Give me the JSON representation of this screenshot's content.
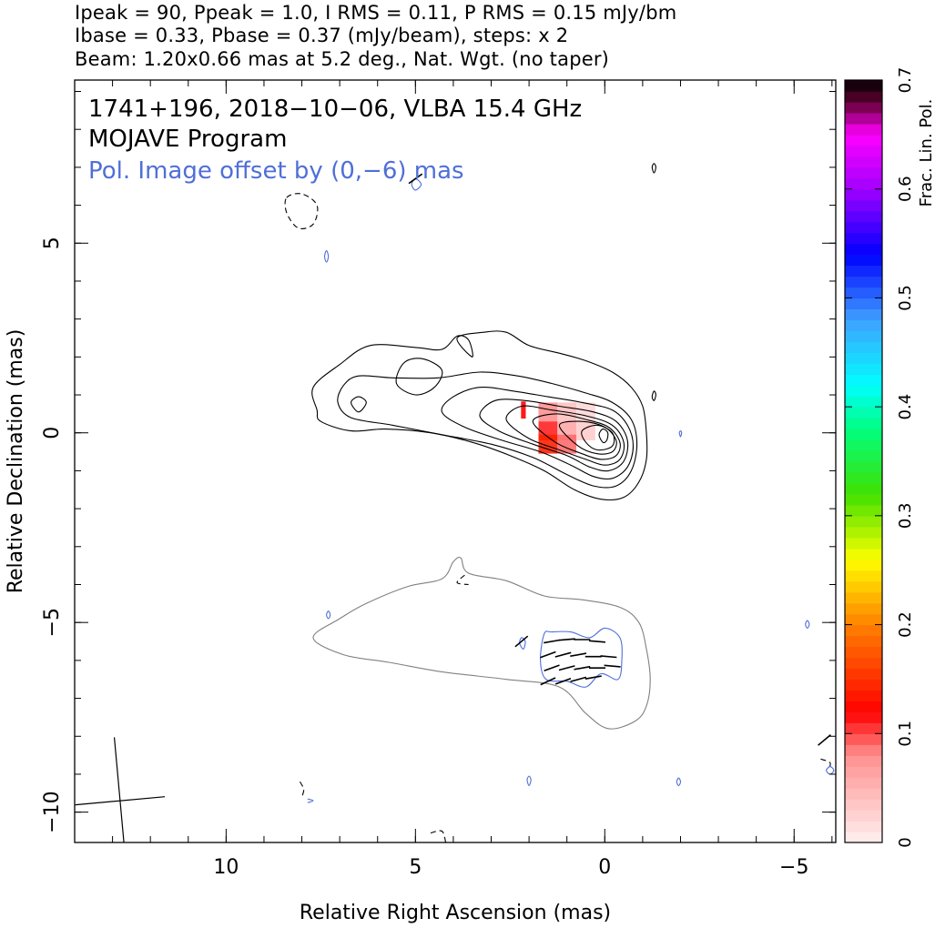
{
  "header": {
    "line1": "Ipeak = 90, Ppeak = 1.0, I RMS = 0.11, P RMS = 0.15 mJy/bm",
    "line2": "Ibase = 0.33, Pbase = 0.37 (mJy/beam), steps: x 2",
    "line3": "Beam: 1.20x0.66 mas at 5.2 deg., Nat. Wgt. (no taper)"
  },
  "panel": {
    "source_line": "1741+196, 2018−10−06, VLBA 15.4 GHz",
    "program_line": "MOJAVE Program",
    "offset_note": "Pol. Image offset by (0,−6) mas"
  },
  "colors": {
    "total_intensity_contours": "#000000",
    "pol_contours": "#4f6fd8",
    "pol_outline": "#808080",
    "note_text": "#4f6fd8"
  },
  "chart_data": {
    "type": "contour",
    "title": "1741+196, 2018−10−06, VLBA 15.4 GHz",
    "xlabel": "Relative Right Ascension (mas)",
    "ylabel": "Relative Declination (mas)",
    "xlim": [
      14.0,
      -6.1
    ],
    "ylim": [
      -10.8,
      9.3
    ],
    "x_ticks": [
      10,
      5,
      0,
      -5
    ],
    "x_tick_labels": [
      "10",
      "5",
      "0",
      "−5"
    ],
    "y_ticks": [
      5,
      0,
      -5,
      -10
    ],
    "y_tick_labels": [
      "5",
      "0",
      "−5",
      "−10"
    ],
    "x_minor_step": 1,
    "y_minor_step": 1,
    "total_intensity_peak_mJy_per_beam": 90,
    "polarized_peak_mJy_per_beam": 1.0,
    "contour_base_mJy_per_beam": 0.33,
    "contour_step_factor": 2,
    "contour_levels_mJy_per_beam": [
      0.33,
      0.66,
      1.32,
      2.64,
      5.28,
      10.56,
      21.12,
      42.24,
      84.48
    ],
    "beam": {
      "major_mas": 1.2,
      "minor_mas": 0.66,
      "pa_deg": 5.2,
      "center": [
        12.8,
        -9.7
      ]
    },
    "core_position": [
      0,
      0
    ],
    "pol_offset_mas": [
      0,
      -6
    ],
    "colorbar": {
      "label": "Frac. Lin. Pol.",
      "range": [
        0,
        0.7
      ],
      "ticks": [
        0,
        0.1,
        0.2,
        0.3,
        0.4,
        0.5,
        0.6,
        0.7
      ],
      "tick_labels": [
        "0",
        "0.1",
        "0.2",
        "0.3",
        "0.4",
        "0.5",
        "0.6",
        "0.7"
      ],
      "stops": [
        [
          0.0,
          "#fff0f0"
        ],
        [
          0.08,
          "#ff9090"
        ],
        [
          0.12,
          "#ff0000"
        ],
        [
          0.2,
          "#ff8000"
        ],
        [
          0.26,
          "#ffff00"
        ],
        [
          0.32,
          "#40e000"
        ],
        [
          0.38,
          "#00ff80"
        ],
        [
          0.42,
          "#00ffff"
        ],
        [
          0.48,
          "#40a0ff"
        ],
        [
          0.54,
          "#0000ff"
        ],
        [
          0.6,
          "#a000ff"
        ],
        [
          0.65,
          "#ff00ff"
        ],
        [
          0.68,
          "#600030"
        ],
        [
          0.7,
          "#000000"
        ]
      ]
    },
    "fractional_pol_patches": [
      {
        "x": 1.5,
        "y": 0.55,
        "frac": 0.08
      },
      {
        "x": 1.0,
        "y": 0.55,
        "frac": 0.04
      },
      {
        "x": 0.5,
        "y": 0.55,
        "frac": 0.02
      },
      {
        "x": 1.5,
        "y": 0.05,
        "frac": 0.11
      },
      {
        "x": 1.0,
        "y": 0.05,
        "frac": 0.06
      },
      {
        "x": 0.5,
        "y": 0.05,
        "frac": 0.03
      },
      {
        "x": 1.5,
        "y": -0.3,
        "frac": 0.14
      },
      {
        "x": 1.0,
        "y": -0.3,
        "frac": 0.09
      },
      {
        "x": 2.15,
        "y": 0.6,
        "frac": 0.12
      }
    ],
    "evpa_vectors": [
      {
        "x": 1.4,
        "y": -5.5,
        "angle_deg": -10
      },
      {
        "x": 1.0,
        "y": -5.45,
        "angle_deg": -5
      },
      {
        "x": 0.6,
        "y": -5.45,
        "angle_deg": 0
      },
      {
        "x": 0.2,
        "y": -5.5,
        "angle_deg": 5
      },
      {
        "x": 1.5,
        "y": -5.85,
        "angle_deg": -20
      },
      {
        "x": 1.1,
        "y": -5.85,
        "angle_deg": -15
      },
      {
        "x": 0.7,
        "y": -5.85,
        "angle_deg": -10
      },
      {
        "x": 0.3,
        "y": -5.9,
        "angle_deg": 0
      },
      {
        "x": -0.1,
        "y": -5.9,
        "angle_deg": 5
      },
      {
        "x": 1.4,
        "y": -6.2,
        "angle_deg": -20
      },
      {
        "x": 1.0,
        "y": -6.2,
        "angle_deg": -15
      },
      {
        "x": 0.6,
        "y": -6.2,
        "angle_deg": -10
      },
      {
        "x": 0.2,
        "y": -6.2,
        "angle_deg": 0
      },
      {
        "x": -0.2,
        "y": -6.15,
        "angle_deg": 5
      },
      {
        "x": 1.5,
        "y": -6.55,
        "angle_deg": -25
      },
      {
        "x": 1.1,
        "y": -6.55,
        "angle_deg": -20
      },
      {
        "x": 0.7,
        "y": -6.5,
        "angle_deg": -15
      },
      {
        "x": 0.3,
        "y": -6.45,
        "angle_deg": -10
      },
      {
        "x": 2.2,
        "y": -5.5,
        "angle_deg": -40
      },
      {
        "x": 5.0,
        "y": 6.7,
        "angle_deg": -35
      },
      {
        "x": -5.8,
        "y": -8.1,
        "angle_deg": -40
      }
    ],
    "total_intensity_contours": [
      [
        [
          7.6,
          0.6
        ],
        [
          7.7,
          1.2
        ],
        [
          7.0,
          1.8
        ],
        [
          6.2,
          2.3
        ],
        [
          5.0,
          2.25
        ],
        [
          4.3,
          2.2
        ],
        [
          3.9,
          2.55
        ],
        [
          3.6,
          2.45
        ],
        [
          3.5,
          2.0
        ],
        [
          3.9,
          2.5
        ],
        [
          3.2,
          2.65
        ],
        [
          2.6,
          2.65
        ],
        [
          2.0,
          2.3
        ],
        [
          1.2,
          2.1
        ],
        [
          0.5,
          1.9
        ],
        [
          -0.2,
          1.6
        ],
        [
          -0.7,
          1.2
        ],
        [
          -1.0,
          0.7
        ],
        [
          -1.1,
          0.0
        ],
        [
          -1.1,
          -0.7
        ],
        [
          -0.9,
          -1.3
        ],
        [
          -0.5,
          -1.7
        ],
        [
          0.1,
          -1.75
        ],
        [
          0.8,
          -1.5
        ],
        [
          1.6,
          -1.0
        ],
        [
          2.5,
          -0.6
        ],
        [
          3.5,
          -0.25
        ],
        [
          4.6,
          0.0
        ],
        [
          5.8,
          0.1
        ],
        [
          6.7,
          0.05
        ],
        [
          7.5,
          0.3
        ],
        [
          7.6,
          0.6
        ]
      ],
      [
        [
          7.05,
          0.8
        ],
        [
          6.9,
          1.25
        ],
        [
          6.5,
          1.5
        ],
        [
          5.6,
          1.45
        ],
        [
          4.4,
          1.45
        ],
        [
          3.3,
          1.6
        ],
        [
          2.3,
          1.5
        ],
        [
          1.4,
          1.3
        ],
        [
          0.5,
          1.05
        ],
        [
          -0.2,
          0.8
        ],
        [
          -0.7,
          0.35
        ],
        [
          -0.85,
          -0.3
        ],
        [
          -0.7,
          -1.0
        ],
        [
          -0.3,
          -1.4
        ],
        [
          0.3,
          -1.4
        ],
        [
          1.0,
          -1.1
        ],
        [
          1.9,
          -0.65
        ],
        [
          3.0,
          -0.3
        ],
        [
          4.3,
          -0.05
        ],
        [
          5.6,
          0.2
        ],
        [
          6.7,
          0.4
        ],
        [
          7.05,
          0.8
        ]
      ],
      [
        [
          4.3,
          0.55
        ],
        [
          4.0,
          0.95
        ],
        [
          3.3,
          1.2
        ],
        [
          2.4,
          1.1
        ],
        [
          1.5,
          0.95
        ],
        [
          0.6,
          0.8
        ],
        [
          -0.2,
          0.6
        ],
        [
          -0.6,
          0.2
        ],
        [
          -0.75,
          -0.35
        ],
        [
          -0.6,
          -0.9
        ],
        [
          -0.2,
          -1.2
        ],
        [
          0.3,
          -1.15
        ],
        [
          0.9,
          -0.85
        ],
        [
          1.7,
          -0.5
        ],
        [
          2.7,
          -0.2
        ],
        [
          3.7,
          0.15
        ],
        [
          4.3,
          0.55
        ]
      ],
      [
        [
          3.3,
          0.45
        ],
        [
          2.9,
          0.85
        ],
        [
          2.1,
          0.85
        ],
        [
          1.2,
          0.7
        ],
        [
          0.3,
          0.55
        ],
        [
          -0.3,
          0.3
        ],
        [
          -0.6,
          -0.2
        ],
        [
          -0.5,
          -0.75
        ],
        [
          -0.1,
          -1.0
        ],
        [
          0.4,
          -0.9
        ],
        [
          1.0,
          -0.6
        ],
        [
          1.9,
          -0.3
        ],
        [
          2.8,
          0.05
        ],
        [
          3.3,
          0.45
        ]
      ],
      [
        [
          2.6,
          0.35
        ],
        [
          2.2,
          0.7
        ],
        [
          1.4,
          0.6
        ],
        [
          0.5,
          0.45
        ],
        [
          -0.2,
          0.2
        ],
        [
          -0.5,
          -0.25
        ],
        [
          -0.4,
          -0.7
        ],
        [
          0.0,
          -0.85
        ],
        [
          0.5,
          -0.7
        ],
        [
          1.2,
          -0.45
        ],
        [
          2.0,
          -0.15
        ],
        [
          2.6,
          0.35
        ]
      ],
      [
        [
          1.9,
          0.3
        ],
        [
          1.3,
          0.5
        ],
        [
          0.5,
          0.35
        ],
        [
          -0.1,
          0.15
        ],
        [
          -0.4,
          -0.25
        ],
        [
          -0.3,
          -0.6
        ],
        [
          0.1,
          -0.7
        ],
        [
          0.6,
          -0.55
        ],
        [
          1.3,
          -0.25
        ],
        [
          1.9,
          0.3
        ]
      ],
      [
        [
          1.2,
          0.2
        ],
        [
          0.6,
          0.3
        ],
        [
          0.0,
          0.15
        ],
        [
          -0.3,
          -0.2
        ],
        [
          -0.2,
          -0.5
        ],
        [
          0.2,
          -0.55
        ],
        [
          0.7,
          -0.35
        ],
        [
          1.2,
          0.2
        ]
      ],
      [
        [
          0.6,
          0.05
        ],
        [
          0.2,
          0.2
        ],
        [
          -0.2,
          0.0
        ],
        [
          -0.2,
          -0.35
        ],
        [
          0.2,
          -0.45
        ],
        [
          0.5,
          -0.25
        ],
        [
          0.6,
          0.05
        ]
      ],
      [
        [
          0.15,
          -0.05
        ],
        [
          0.05,
          0.1
        ],
        [
          -0.08,
          0.0
        ],
        [
          -0.05,
          -0.2
        ],
        [
          0.05,
          -0.25
        ],
        [
          0.15,
          -0.05
        ]
      ],
      [
        [
          5.3,
          1.85
        ],
        [
          4.8,
          1.95
        ],
        [
          4.3,
          1.65
        ],
        [
          4.5,
          1.2
        ],
        [
          5.0,
          1.0
        ],
        [
          5.5,
          1.3
        ],
        [
          5.3,
          1.85
        ]
      ],
      [
        [
          6.7,
          0.8
        ],
        [
          6.5,
          0.95
        ],
        [
          6.3,
          0.8
        ],
        [
          6.5,
          0.55
        ],
        [
          6.7,
          0.8
        ]
      ],
      [
        [
          -1.35,
          1.0
        ],
        [
          -1.3,
          1.1
        ],
        [
          -1.25,
          0.95
        ],
        [
          -1.3,
          0.85
        ],
        [
          -1.35,
          1.0
        ]
      ],
      [
        [
          -1.25,
          7.0
        ],
        [
          -1.3,
          7.1
        ],
        [
          -1.35,
          7.0
        ],
        [
          -1.3,
          6.85
        ],
        [
          -1.25,
          7.0
        ]
      ]
    ],
    "negative_contours": [
      [
        [
          8.4,
          6.2
        ],
        [
          8.0,
          6.3
        ],
        [
          7.6,
          6.0
        ],
        [
          7.7,
          5.5
        ],
        [
          8.1,
          5.4
        ],
        [
          8.4,
          5.8
        ],
        [
          8.4,
          6.2
        ]
      ],
      [
        [
          4.6,
          -10.55
        ],
        [
          4.3,
          -10.5
        ],
        [
          4.2,
          -10.8
        ]
      ],
      [
        [
          3.7,
          -3.75
        ],
        [
          3.9,
          -3.95
        ],
        [
          3.6,
          -4.0
        ]
      ],
      [
        [
          8.05,
          -9.2
        ],
        [
          7.95,
          -9.4
        ],
        [
          8.0,
          -9.6
        ]
      ],
      [
        [
          -5.7,
          -8.6
        ],
        [
          -5.95,
          -8.7
        ],
        [
          -5.9,
          -8.9
        ]
      ]
    ],
    "pol_outline": [
      [
        7.7,
        -5.4
      ],
      [
        7.0,
        -4.9
      ],
      [
        6.3,
        -4.5
      ],
      [
        5.2,
        -4.05
      ],
      [
        4.3,
        -3.85
      ],
      [
        4.0,
        -3.4
      ],
      [
        3.8,
        -3.3
      ],
      [
        3.6,
        -3.7
      ],
      [
        2.6,
        -3.9
      ],
      [
        1.6,
        -4.3
      ],
      [
        0.6,
        -4.4
      ],
      [
        -0.4,
        -4.6
      ],
      [
        -0.9,
        -5.0
      ],
      [
        -1.1,
        -5.7
      ],
      [
        -1.2,
        -6.5
      ],
      [
        -1.1,
        -7.2
      ],
      [
        -0.8,
        -7.6
      ],
      [
        -0.1,
        -7.8
      ],
      [
        0.5,
        -7.4
      ],
      [
        1.2,
        -6.7
      ],
      [
        2.6,
        -6.5
      ],
      [
        4.3,
        -6.3
      ],
      [
        5.7,
        -6.05
      ],
      [
        6.9,
        -5.85
      ],
      [
        7.7,
        -5.4
      ]
    ],
    "pol_contours": [
      [
        [
          1.6,
          -5.3
        ],
        [
          1.4,
          -5.25
        ],
        [
          0.9,
          -5.25
        ],
        [
          0.4,
          -5.4
        ],
        [
          0.0,
          -5.15
        ],
        [
          -0.4,
          -5.4
        ],
        [
          -0.45,
          -6.0
        ],
        [
          -0.35,
          -6.5
        ],
        [
          0.1,
          -6.35
        ],
        [
          0.5,
          -6.7
        ],
        [
          1.0,
          -6.55
        ],
        [
          1.55,
          -6.5
        ],
        [
          1.7,
          -6.0
        ],
        [
          1.6,
          -5.3
        ]
      ],
      [
        [
          2.2,
          -5.4
        ],
        [
          2.1,
          -5.5
        ],
        [
          2.15,
          -5.7
        ],
        [
          2.25,
          -5.55
        ],
        [
          2.2,
          -5.4
        ]
      ],
      [
        [
          7.3,
          -4.7
        ],
        [
          7.35,
          -4.8
        ],
        [
          7.3,
          -4.9
        ],
        [
          7.25,
          -4.8
        ],
        [
          7.3,
          -4.7
        ]
      ],
      [
        [
          -5.35,
          -4.95
        ],
        [
          -5.3,
          -5.05
        ],
        [
          -5.35,
          -5.15
        ],
        [
          -5.4,
          -5.05
        ],
        [
          -5.35,
          -4.95
        ]
      ],
      [
        [
          2.0,
          -9.05
        ],
        [
          1.95,
          -9.15
        ],
        [
          2.0,
          -9.3
        ],
        [
          2.05,
          -9.15
        ],
        [
          2.0,
          -9.05
        ]
      ],
      [
        [
          -1.95,
          -9.1
        ],
        [
          -1.9,
          -9.2
        ],
        [
          -1.95,
          -9.3
        ],
        [
          -2.0,
          -9.2
        ],
        [
          -1.95,
          -9.1
        ]
      ],
      [
        [
          -5.95,
          -8.8
        ],
        [
          -5.85,
          -8.9
        ],
        [
          -5.95,
          -9.0
        ],
        [
          -6.05,
          -8.9
        ],
        [
          -5.95,
          -8.8
        ]
      ],
      [
        [
          5.1,
          6.55
        ],
        [
          5.0,
          6.4
        ],
        [
          4.85,
          6.55
        ],
        [
          5.0,
          6.7
        ],
        [
          5.1,
          6.55
        ]
      ],
      [
        [
          7.35,
          4.8
        ],
        [
          7.3,
          4.65
        ],
        [
          7.35,
          4.5
        ],
        [
          7.4,
          4.65
        ],
        [
          7.35,
          4.8
        ]
      ],
      [
        [
          -2.0,
          0.05
        ],
        [
          -1.97,
          0.0
        ],
        [
          -2.0,
          -0.1
        ],
        [
          -2.03,
          0.0
        ],
        [
          -2.0,
          0.05
        ]
      ],
      [
        [
          7.85,
          -9.65
        ],
        [
          7.7,
          -9.7
        ],
        [
          7.85,
          -9.75
        ]
      ]
    ]
  }
}
